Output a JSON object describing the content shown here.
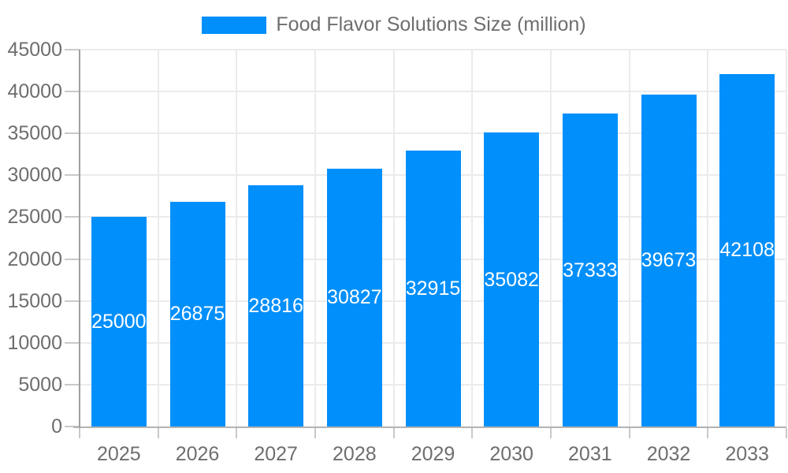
{
  "chart_data": {
    "type": "bar",
    "title": "Food Flavor Solutions Size (million)",
    "legend": {
      "position": "top",
      "label": "Food Flavor Solutions Size (million)"
    },
    "categories": [
      "2025",
      "2026",
      "2027",
      "2028",
      "2029",
      "2030",
      "2031",
      "2032",
      "2033"
    ],
    "series": [
      {
        "name": "Food Flavor Solutions Size (million)",
        "values": [
          25000,
          26875,
          28816,
          30827,
          32915,
          35082,
          37333,
          39673,
          42108
        ]
      }
    ],
    "data_labels": [
      "25000",
      "26875",
      "28816",
      "30827",
      "32915",
      "35082",
      "37333",
      "39673",
      "42108"
    ],
    "xlabel": "",
    "ylabel": "",
    "ylim": [
      0,
      45000
    ],
    "yticks": [
      0,
      5000,
      10000,
      15000,
      20000,
      25000,
      30000,
      35000,
      40000,
      45000
    ],
    "grid": true,
    "colors": {
      "bar": "#008FFB",
      "data_label": "#FFFFFF",
      "axis_text": "#6E6E6E",
      "grid_line": "#EBEBEB",
      "tick": "#C9C9C9",
      "y_axis_line": "#A0A0A0",
      "x_axis_line": "#B3B3B3",
      "background": "#FFFFFF"
    }
  }
}
